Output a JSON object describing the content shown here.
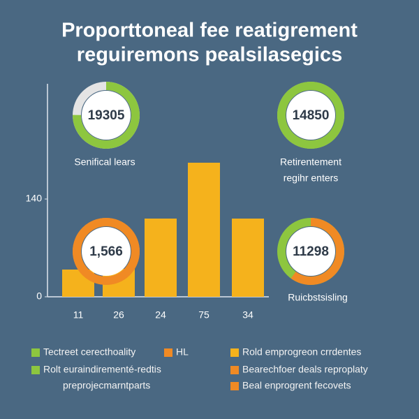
{
  "chart_data": {
    "type": "bar",
    "title": [
      "Proporttoneal fee reatigrement",
      "reguiremons pealsilasegics"
    ],
    "categories": [
      "11",
      "26",
      "24",
      "75",
      "34"
    ],
    "values": [
      39,
      40,
      112,
      192,
      112
    ],
    "color": "#f5b21c",
    "ylim": [
      0,
      305
    ],
    "yticks": [
      0,
      140
    ],
    "donuts": [
      {
        "value": 19305,
        "label": [
          "Senifical lears"
        ],
        "share": 75,
        "color": "#8dc63f",
        "rest_color": "#e4e4e4"
      },
      {
        "value": 14850,
        "label": [
          "Retirentement",
          "regihr enters"
        ],
        "share": 100,
        "color": "#8dc63f",
        "rest_color": "#b7d96a"
      },
      {
        "value": 1566,
        "value_label": "1,566",
        "label": [],
        "share": 100,
        "color": "#f08a24",
        "rest_color": "#f08a24"
      },
      {
        "value": 11298,
        "label": [
          "Ruicbstsisling"
        ],
        "share": 60,
        "color": "#f08a24",
        "rest_color": "#8dc63f"
      }
    ],
    "legend": [
      {
        "label": [
          "Tectreet cerecthoality"
        ],
        "color": "#8dc63f"
      },
      {
        "label": [
          "HL"
        ],
        "color": "#f08a24"
      },
      {
        "label": [
          "Rolt euraindirementé-redtis",
          "preprojecmarntparts"
        ],
        "color": "#8dc63f"
      },
      {
        "label": [
          "Rold emprogreon crrdentes"
        ],
        "color": "#f5b21c"
      },
      {
        "label": [
          "Bearechfoer deals reproplaty"
        ],
        "color": "#f08a24"
      },
      {
        "label": [
          "Beal enprogrent fecovets"
        ],
        "color": "#f08a24"
      }
    ]
  }
}
